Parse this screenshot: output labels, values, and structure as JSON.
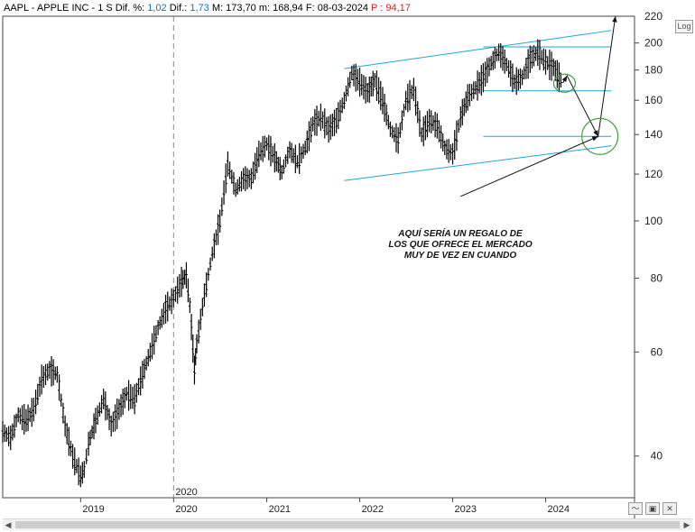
{
  "header": {
    "symbol": "AAPL",
    "name": "APPLE INC",
    "timeframe": "1 S",
    "dif_pct_label": "Dif. %:",
    "dif_pct_value": "1,02",
    "dif_label": "Dif.:",
    "dif_value": "1,73",
    "max_label": "M:",
    "max_value": "173,70",
    "min_label": "m:",
    "min_value": "168,94",
    "date_label": "F:",
    "date_value": "08-03-2024",
    "p_label": "P :",
    "p_value": "94,17"
  },
  "log_label": "Log",
  "annotation": {
    "line1": "AQUÍ SERÍA UN REGALO DE",
    "line2": "LOS QUE OFRECE EL MERCADO",
    "line3": "MUY DE VEZ EN CUANDO"
  },
  "colors": {
    "candles": "#000000",
    "channel": "#19a9d6",
    "annotation_circle": "#3fa03f",
    "grid": "#cccccc",
    "red_value": "#d62020",
    "blue_value": "#1a6fc4"
  },
  "icons": {
    "wave": "wave-icon",
    "save": "save-icon",
    "close": "close-icon",
    "scroll_left": "scroll-left-icon",
    "scroll_right": "scroll-right-icon"
  },
  "chart_data": {
    "type": "candlestick-line",
    "scale": "log",
    "ylim": [
      34,
      222
    ],
    "y_ticks": [
      40,
      60,
      80,
      100,
      120,
      140,
      160,
      180,
      200
    ],
    "y_tick_top_partial": "220",
    "x_tick_labels": [
      "2019",
      "2020",
      "2021",
      "2022",
      "2023",
      "2024"
    ],
    "x_tick_dates": [
      "2019-01-01",
      "2020-01-01",
      "2021-01-01",
      "2022-01-01",
      "2023-01-01",
      "2024-01-01"
    ],
    "x_range": [
      "2018-03-01",
      "2024-12-15"
    ],
    "vertical_marker": {
      "date": "2020-01-01",
      "label": "2020"
    },
    "series": [
      {
        "values": [
          [
            "2018-03-01",
            44
          ],
          [
            "2018-04-01",
            43
          ],
          [
            "2018-05-01",
            47
          ],
          [
            "2018-06-01",
            46
          ],
          [
            "2018-07-01",
            48
          ],
          [
            "2018-08-01",
            54
          ],
          [
            "2018-09-01",
            56
          ],
          [
            "2018-10-01",
            55
          ],
          [
            "2018-11-01",
            45
          ],
          [
            "2018-12-01",
            40
          ],
          [
            "2019-01-01",
            37
          ],
          [
            "2019-01-15",
            38
          ],
          [
            "2019-02-01",
            42
          ],
          [
            "2019-03-01",
            46
          ],
          [
            "2019-04-01",
            50
          ],
          [
            "2019-05-01",
            45
          ],
          [
            "2019-06-01",
            48
          ],
          [
            "2019-07-01",
            51
          ],
          [
            "2019-08-01",
            50
          ],
          [
            "2019-09-01",
            55
          ],
          [
            "2019-10-01",
            60
          ],
          [
            "2019-11-01",
            66
          ],
          [
            "2019-12-01",
            71
          ],
          [
            "2020-01-01",
            74
          ],
          [
            "2020-02-01",
            79
          ],
          [
            "2020-02-20",
            81
          ],
          [
            "2020-03-05",
            72
          ],
          [
            "2020-03-23",
            56
          ],
          [
            "2020-04-01",
            62
          ],
          [
            "2020-05-01",
            75
          ],
          [
            "2020-06-01",
            88
          ],
          [
            "2020-07-01",
            100
          ],
          [
            "2020-08-01",
            125
          ],
          [
            "2020-09-01",
            113
          ],
          [
            "2020-10-01",
            118
          ],
          [
            "2020-11-01",
            118
          ],
          [
            "2020-12-01",
            130
          ],
          [
            "2021-01-01",
            135
          ],
          [
            "2021-02-01",
            128
          ],
          [
            "2021-03-01",
            121
          ],
          [
            "2021-04-01",
            132
          ],
          [
            "2021-05-01",
            126
          ],
          [
            "2021-06-01",
            133
          ],
          [
            "2021-07-01",
            146
          ],
          [
            "2021-08-01",
            150
          ],
          [
            "2021-09-01",
            143
          ],
          [
            "2021-10-01",
            148
          ],
          [
            "2021-11-01",
            160
          ],
          [
            "2021-12-01",
            178
          ],
          [
            "2022-01-01",
            172
          ],
          [
            "2022-02-01",
            165
          ],
          [
            "2022-03-01",
            173
          ],
          [
            "2022-04-01",
            160
          ],
          [
            "2022-05-01",
            143
          ],
          [
            "2022-06-01",
            137
          ],
          [
            "2022-07-01",
            160
          ],
          [
            "2022-08-01",
            167
          ],
          [
            "2022-09-01",
            140
          ],
          [
            "2022-10-01",
            148
          ],
          [
            "2022-11-01",
            145
          ],
          [
            "2022-12-01",
            133
          ],
          [
            "2023-01-01",
            130
          ],
          [
            "2023-02-01",
            150
          ],
          [
            "2023-03-01",
            162
          ],
          [
            "2023-04-01",
            168
          ],
          [
            "2023-05-01",
            175
          ],
          [
            "2023-06-01",
            185
          ],
          [
            "2023-07-01",
            193
          ],
          [
            "2023-08-01",
            184
          ],
          [
            "2023-09-01",
            172
          ],
          [
            "2023-10-01",
            175
          ],
          [
            "2023-11-01",
            188
          ],
          [
            "2023-12-01",
            193
          ],
          [
            "2024-01-01",
            186
          ],
          [
            "2024-02-01",
            182
          ],
          [
            "2024-03-08",
            171
          ]
        ]
      }
    ],
    "channel_lines": [
      {
        "from": [
          "2021-11-01",
          181
        ],
        "to": [
          "2024-09-15",
          210
        ]
      },
      {
        "from": [
          "2021-11-01",
          117
        ],
        "to": [
          "2024-09-15",
          134
        ]
      }
    ],
    "horizontal_levels": [
      {
        "value": 197,
        "from": "2023-05-01",
        "to": "2024-09-15"
      },
      {
        "value": 166,
        "from": "2023-05-01",
        "to": "2024-09-15"
      },
      {
        "value": 139,
        "from": "2023-05-01",
        "to": "2024-09-15"
      }
    ],
    "projection_path": [
      [
        "2024-03-08",
        171
      ],
      [
        "2024-03-25",
        176
      ],
      [
        "2024-07-25",
        139
      ],
      [
        "2024-10-01",
        222
      ]
    ],
    "circles": [
      {
        "date": "2024-03-15",
        "value": 171
      },
      {
        "date": "2024-08-01",
        "value": 139
      }
    ],
    "annotation_arrow": {
      "from": [
        "2023-02-01",
        110
      ],
      "to": [
        "2024-07-25",
        139
      ]
    }
  }
}
